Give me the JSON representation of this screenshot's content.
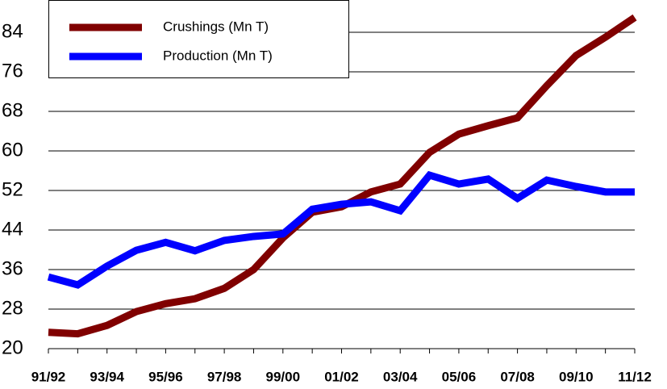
{
  "chart_data": {
    "type": "line",
    "categories": [
      "91/92",
      null,
      "93/94",
      null,
      "95/96",
      null,
      "97/98",
      null,
      "99/00",
      null,
      "01/02",
      null,
      "03/04",
      null,
      "05/06",
      null,
      "07/08",
      null,
      "09/10",
      null,
      "11/12"
    ],
    "series": [
      {
        "name": "Crushings (Mn T)",
        "color": "#800000",
        "values": [
          23.3,
          23,
          24.7,
          27.5,
          29.1,
          30.1,
          32.2,
          36,
          42.4,
          47.6,
          48.7,
          51.7,
          53.3,
          59.7,
          63.4,
          65.1,
          66.7,
          73.2,
          79.3,
          83,
          87
        ]
      },
      {
        "name": "Production (Mn T)",
        "color": "#0000ff",
        "values": [
          34.5,
          32.9,
          36.7,
          39.9,
          41.5,
          39.8,
          41.9,
          42.7,
          43.2,
          48.2,
          49.2,
          49.7,
          47.9,
          55.1,
          53.3,
          54.3,
          50.4,
          54.1,
          52.8,
          51.7,
          51.7
        ]
      }
    ],
    "ylim": [
      20,
      88
    ],
    "yticks": [
      20,
      28,
      36,
      44,
      52,
      60,
      68,
      76,
      84
    ],
    "grid": true
  }
}
